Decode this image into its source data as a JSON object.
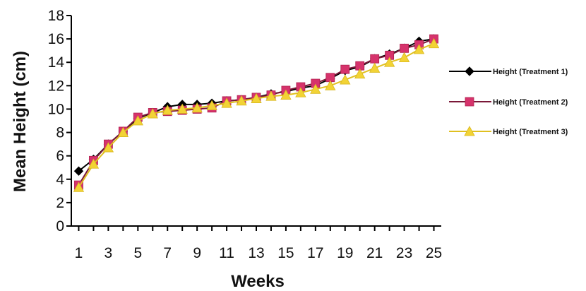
{
  "chart_data": {
    "type": "line",
    "title": "",
    "xlabel": "Weeks",
    "ylabel": "Mean Height (cm)",
    "xlim": [
      0.5,
      25.5
    ],
    "ylim": [
      0,
      18
    ],
    "x_ticks": [
      1,
      3,
      5,
      7,
      9,
      11,
      13,
      15,
      17,
      19,
      21,
      23,
      25
    ],
    "y_ticks": [
      0,
      2,
      4,
      6,
      8,
      10,
      12,
      14,
      16,
      18
    ],
    "grid": false,
    "legend_position": "right",
    "x": [
      1,
      2,
      3,
      4,
      5,
      6,
      7,
      8,
      9,
      10,
      11,
      12,
      13,
      14,
      15,
      16,
      17,
      18,
      19,
      20,
      21,
      22,
      23,
      24,
      25
    ],
    "series": [
      {
        "name": "Height (Treatment 1)",
        "color": "#000000",
        "marker": "diamond",
        "values": [
          4.7,
          5.7,
          7.0,
          8.1,
          9.2,
          9.7,
          10.2,
          10.4,
          10.4,
          10.5,
          10.7,
          10.8,
          11.0,
          11.3,
          11.5,
          11.8,
          12.0,
          12.6,
          13.3,
          13.6,
          14.3,
          14.7,
          15.2,
          15.8,
          16.0
        ]
      },
      {
        "name": "Height (Treatment 2)",
        "color": "#d6336c",
        "marker": "square",
        "values": [
          3.5,
          5.6,
          7.0,
          8.1,
          9.3,
          9.7,
          9.8,
          9.9,
          10.0,
          10.1,
          10.7,
          10.8,
          11.0,
          11.2,
          11.6,
          11.9,
          12.2,
          12.7,
          13.4,
          13.7,
          14.3,
          14.6,
          15.2,
          15.5,
          16.0
        ]
      },
      {
        "name": "Height (Treatment 3)",
        "color": "#f2d335",
        "marker": "triangle",
        "values": [
          3.3,
          5.3,
          6.7,
          8.0,
          9.0,
          9.6,
          9.9,
          10.0,
          10.1,
          10.3,
          10.5,
          10.7,
          10.9,
          11.1,
          11.2,
          11.4,
          11.7,
          12.0,
          12.5,
          13.0,
          13.5,
          14.0,
          14.4,
          15.1,
          15.6
        ]
      }
    ]
  }
}
